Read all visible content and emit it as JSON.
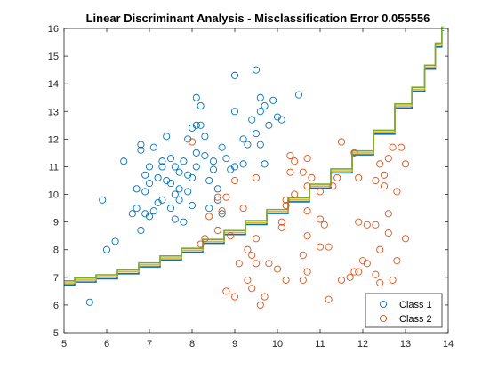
{
  "chart_data": {
    "type": "scatter",
    "title": "Linear Discriminant Analysis - Misclassification Error 0.055556",
    "xlim": [
      5,
      14
    ],
    "ylim": [
      5,
      16
    ],
    "x_ticks": [
      5,
      6,
      7,
      8,
      9,
      10,
      11,
      12,
      13,
      14
    ],
    "y_ticks": [
      5,
      6,
      7,
      8,
      9,
      10,
      11,
      12,
      13,
      14,
      15,
      16
    ],
    "xlabel": "",
    "ylabel": "",
    "grid": false,
    "legend": {
      "position": "bottom-right",
      "entries": [
        "Class 1",
        "Class 2"
      ]
    },
    "series": [
      {
        "name": "Class 1",
        "color": "#0072BD",
        "marker": "circle",
        "points": [
          [
            5.6,
            6.1
          ],
          [
            6.0,
            8.0
          ],
          [
            6.2,
            8.3
          ],
          [
            5.9,
            9.8
          ],
          [
            6.4,
            11.2
          ],
          [
            6.6,
            9.3
          ],
          [
            6.8,
            8.7
          ],
          [
            6.7,
            9.5
          ],
          [
            6.9,
            9.3
          ],
          [
            7.0,
            9.2
          ],
          [
            7.1,
            9.4
          ],
          [
            6.9,
            10.1
          ],
          [
            7.0,
            10.4
          ],
          [
            6.9,
            10.7
          ],
          [
            7.2,
            10.6
          ],
          [
            7.0,
            11.0
          ],
          [
            7.3,
            11.0
          ],
          [
            7.3,
            11.2
          ],
          [
            7.5,
            11.3
          ],
          [
            7.6,
            11.0
          ],
          [
            7.7,
            10.8
          ],
          [
            7.5,
            10.4
          ],
          [
            7.6,
            10.0
          ],
          [
            7.7,
            9.8
          ],
          [
            7.3,
            9.8
          ],
          [
            7.5,
            9.5
          ],
          [
            7.6,
            9.1
          ],
          [
            7.8,
            9.0
          ],
          [
            7.9,
            10.1
          ],
          [
            8.0,
            10.6
          ],
          [
            8.1,
            11.0
          ],
          [
            8.1,
            11.5
          ],
          [
            7.9,
            12.0
          ],
          [
            8.0,
            12.4
          ],
          [
            8.2,
            12.5
          ],
          [
            8.3,
            12.1
          ],
          [
            8.3,
            11.4
          ],
          [
            8.5,
            11.2
          ],
          [
            8.5,
            10.9
          ],
          [
            8.4,
            10.5
          ],
          [
            8.6,
            10.2
          ],
          [
            8.7,
            9.3
          ],
          [
            8.9,
            10.9
          ],
          [
            9.0,
            11.0
          ],
          [
            9.2,
            11.1
          ],
          [
            9.2,
            12.0
          ],
          [
            9.3,
            11.8
          ],
          [
            9.5,
            12.2
          ],
          [
            9.6,
            11.8
          ],
          [
            9.4,
            12.7
          ],
          [
            9.6,
            13.0
          ],
          [
            9.7,
            13.2
          ],
          [
            9.8,
            12.5
          ],
          [
            9.6,
            13.5
          ],
          [
            9.9,
            13.4
          ],
          [
            9.0,
            13.0
          ],
          [
            9.5,
            14.5
          ],
          [
            9.0,
            14.3
          ],
          [
            10.0,
            12.8
          ],
          [
            10.1,
            12.7
          ],
          [
            10.5,
            13.6
          ],
          [
            8.1,
            13.5
          ],
          [
            8.1,
            12.5
          ],
          [
            8.2,
            13.2
          ],
          [
            7.4,
            12.1
          ],
          [
            6.8,
            11.6
          ],
          [
            7.1,
            11.7
          ],
          [
            6.8,
            11.8
          ],
          [
            7.8,
            11.2
          ],
          [
            8.7,
            11.7
          ],
          [
            8.8,
            11.3
          ],
          [
            9.7,
            11.1
          ],
          [
            8.6,
            9.8
          ],
          [
            8.0,
            9.6
          ],
          [
            8.4,
            9.5
          ],
          [
            7.7,
            10.2
          ],
          [
            7.2,
            9.7
          ],
          [
            6.7,
            10.2
          ],
          [
            7.4,
            10.5
          ],
          [
            7.9,
            10.7
          ]
        ]
      },
      {
        "name": "Class 2",
        "color": "#D95319",
        "marker": "circle",
        "points": [
          [
            8.0,
            11.9
          ],
          [
            8.6,
            9.9
          ],
          [
            8.4,
            9.2
          ],
          [
            8.7,
            9.4
          ],
          [
            8.8,
            9.9
          ],
          [
            8.6,
            8.7
          ],
          [
            8.9,
            8.5
          ],
          [
            8.2,
            8.2
          ],
          [
            8.3,
            8.4
          ],
          [
            9.0,
            10.5
          ],
          [
            9.5,
            10.6
          ],
          [
            9.2,
            9.5
          ],
          [
            9.5,
            8.4
          ],
          [
            9.4,
            7.8
          ],
          [
            9.5,
            7.5
          ],
          [
            9.3,
            6.9
          ],
          [
            9.4,
            6.6
          ],
          [
            8.8,
            6.5
          ],
          [
            9.0,
            6.3
          ],
          [
            9.6,
            6.0
          ],
          [
            9.7,
            6.3
          ],
          [
            9.8,
            7.5
          ],
          [
            10.2,
            6.9
          ],
          [
            10.1,
            8.8
          ],
          [
            10.1,
            9.0
          ],
          [
            10.2,
            9.6
          ],
          [
            10.2,
            9.8
          ],
          [
            10.3,
            10.8
          ],
          [
            10.6,
            10.8
          ],
          [
            10.8,
            10.6
          ],
          [
            10.7,
            11.3
          ],
          [
            10.4,
            11.2
          ],
          [
            10.3,
            11.4
          ],
          [
            10.4,
            10.0
          ],
          [
            10.7,
            9.4
          ],
          [
            10.7,
            8.5
          ],
          [
            10.6,
            7.8
          ],
          [
            10.7,
            7.2
          ],
          [
            10.6,
            6.9
          ],
          [
            11.0,
            8.1
          ],
          [
            11.0,
            9.1
          ],
          [
            11.2,
            8.1
          ],
          [
            11.0,
            10.1
          ],
          [
            11.3,
            10.3
          ],
          [
            11.4,
            10.6
          ],
          [
            11.5,
            11.9
          ],
          [
            11.8,
            11.5
          ],
          [
            11.9,
            10.6
          ],
          [
            11.9,
            9.0
          ],
          [
            12.1,
            8.9
          ],
          [
            12.0,
            7.6
          ],
          [
            12.1,
            7.5
          ],
          [
            11.9,
            7.2
          ],
          [
            11.8,
            7.2
          ],
          [
            11.5,
            6.9
          ],
          [
            11.2,
            6.2
          ],
          [
            12.3,
            10.5
          ],
          [
            12.5,
            10.7
          ],
          [
            12.4,
            11.1
          ],
          [
            12.5,
            10.3
          ],
          [
            12.7,
            11.7
          ],
          [
            12.6,
            9.3
          ],
          [
            12.6,
            8.6
          ],
          [
            12.3,
            8.9
          ],
          [
            12.3,
            7.1
          ],
          [
            12.4,
            6.8
          ],
          [
            12.7,
            6.9
          ],
          [
            13.0,
            8.4
          ],
          [
            12.8,
            7.6
          ],
          [
            13.0,
            11.1
          ],
          [
            12.6,
            11.3
          ],
          [
            12.8,
            10.1
          ],
          [
            11.7,
            7.0
          ],
          [
            12.9,
            11.7
          ],
          [
            10.0,
            7.3
          ],
          [
            9.1,
            7.5
          ],
          [
            9.3,
            8.0
          ],
          [
            10.7,
            10.3
          ],
          [
            11.1,
            8.9
          ],
          [
            12.4,
            8.0
          ]
        ]
      }
    ],
    "boundary": {
      "colors": [
        "#0072BD",
        "#EDB120",
        "#77AC30"
      ],
      "points": [
        [
          5,
          6.8
        ],
        [
          5.5,
          6.9
        ],
        [
          6,
          7.02
        ],
        [
          6.5,
          7.2
        ],
        [
          7,
          7.45
        ],
        [
          7.5,
          7.7
        ],
        [
          8,
          7.98
        ],
        [
          8.5,
          8.3
        ],
        [
          9,
          8.62
        ],
        [
          9.5,
          8.98
        ],
        [
          10,
          9.38
        ],
        [
          10.5,
          9.8
        ],
        [
          11,
          10.3
        ],
        [
          11.5,
          10.85
        ],
        [
          12,
          11.5
        ],
        [
          12.5,
          12.25
        ],
        [
          13,
          13.2
        ],
        [
          13.3,
          13.8
        ],
        [
          13.6,
          14.6
        ],
        [
          13.8,
          15.4
        ],
        [
          13.9,
          16.0
        ]
      ]
    }
  }
}
